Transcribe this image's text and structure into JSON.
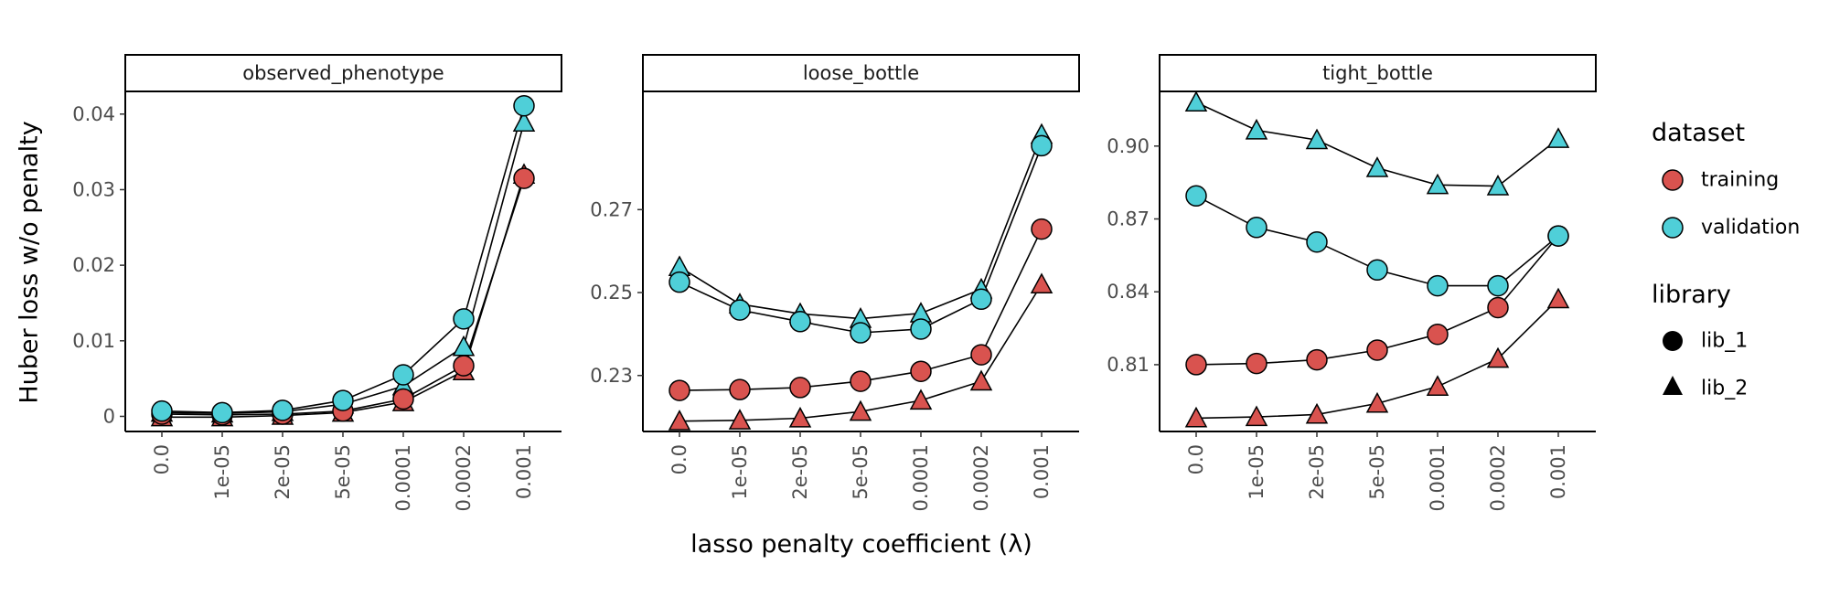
{
  "figure": {
    "ylabel": "Huber loss w/o penalty",
    "xlabel": "lasso penalty coefficient (λ)"
  },
  "legend": {
    "dataset_title": "dataset",
    "library_title": "library",
    "dataset_entries": [
      {
        "label": "training",
        "color": "#d9534f"
      },
      {
        "label": "validation",
        "color": "#4fcfd8"
      }
    ],
    "library_entries": [
      {
        "label": "lib_1",
        "shape": "circle"
      },
      {
        "label": "lib_2",
        "shape": "triangle"
      }
    ]
  },
  "chart_data": [
    {
      "type": "line",
      "panel": "observed_phenotype",
      "categories": [
        "0.0",
        "1e-05",
        "2e-05",
        "5e-05",
        "0.0001",
        "0.0002",
        "0.001"
      ],
      "yticks": [
        0,
        0.01,
        0.02,
        0.03,
        0.04
      ],
      "ytick_labels": [
        "0",
        "0.01",
        "0.02",
        "0.03",
        "0.04"
      ],
      "ylim": [
        -0.002,
        0.043
      ],
      "series": [
        {
          "dataset": "training",
          "library": "lib_1",
          "values": [
            0.0003,
            0.0002,
            0.0003,
            0.0007,
            0.0023,
            0.0067,
            0.0315
          ]
        },
        {
          "dataset": "training",
          "library": "lib_2",
          "values": [
            -0.0001,
            -0.0001,
            0.0001,
            0.0005,
            0.0019,
            0.006,
            0.032
          ]
        },
        {
          "dataset": "validation",
          "library": "lib_1",
          "values": [
            0.0007,
            0.0005,
            0.0008,
            0.0021,
            0.0055,
            0.0129,
            0.0411
          ]
        },
        {
          "dataset": "validation",
          "library": "lib_2",
          "values": [
            0.0005,
            0.0004,
            0.0006,
            0.0016,
            0.004,
            0.0092,
            0.0389
          ]
        }
      ]
    },
    {
      "type": "line",
      "panel": "loose_bottle",
      "categories": [
        "0.0",
        "1e-05",
        "2e-05",
        "5e-05",
        "0.0001",
        "0.0002",
        "0.001"
      ],
      "yticks": [
        0.23,
        0.25,
        0.27
      ],
      "ytick_labels": [
        "0.23",
        "0.25",
        "0.27"
      ],
      "ylim": [
        0.2165,
        0.2985
      ],
      "series": [
        {
          "dataset": "training",
          "library": "lib_1",
          "values": [
            0.2264,
            0.2266,
            0.2271,
            0.2286,
            0.231,
            0.235,
            0.2653
          ]
        },
        {
          "dataset": "training",
          "library": "lib_2",
          "values": [
            0.219,
            0.2192,
            0.2197,
            0.2213,
            0.224,
            0.2286,
            0.252
          ]
        },
        {
          "dataset": "validation",
          "library": "lib_1",
          "values": [
            0.2525,
            0.2458,
            0.243,
            0.2403,
            0.2412,
            0.2484,
            0.2854
          ]
        },
        {
          "dataset": "validation",
          "library": "lib_2",
          "values": [
            0.2562,
            0.2472,
            0.2449,
            0.2437,
            0.245,
            0.2508,
            0.2881
          ]
        }
      ]
    },
    {
      "type": "line",
      "panel": "tight_bottle",
      "categories": [
        "0.0",
        "1e-05",
        "2e-05",
        "5e-05",
        "0.0001",
        "0.0002",
        "0.001"
      ],
      "yticks": [
        0.81,
        0.84,
        0.87,
        0.9
      ],
      "ytick_labels": [
        "0.81",
        "0.84",
        "0.87",
        "0.90"
      ],
      "ylim": [
        0.7825,
        0.9225
      ],
      "series": [
        {
          "dataset": "training",
          "library": "lib_1",
          "values": [
            0.81,
            0.8105,
            0.812,
            0.816,
            0.8225,
            0.8335,
            0.863
          ]
        },
        {
          "dataset": "training",
          "library": "lib_2",
          "values": [
            0.788,
            0.7885,
            0.7895,
            0.794,
            0.801,
            0.8125,
            0.837
          ]
        },
        {
          "dataset": "validation",
          "library": "lib_1",
          "values": [
            0.8795,
            0.8665,
            0.8605,
            0.849,
            0.8425,
            0.8425,
            0.863
          ]
        },
        {
          "dataset": "validation",
          "library": "lib_2",
          "values": [
            0.918,
            0.9065,
            0.9025,
            0.891,
            0.884,
            0.8835,
            0.903
          ]
        }
      ]
    }
  ]
}
